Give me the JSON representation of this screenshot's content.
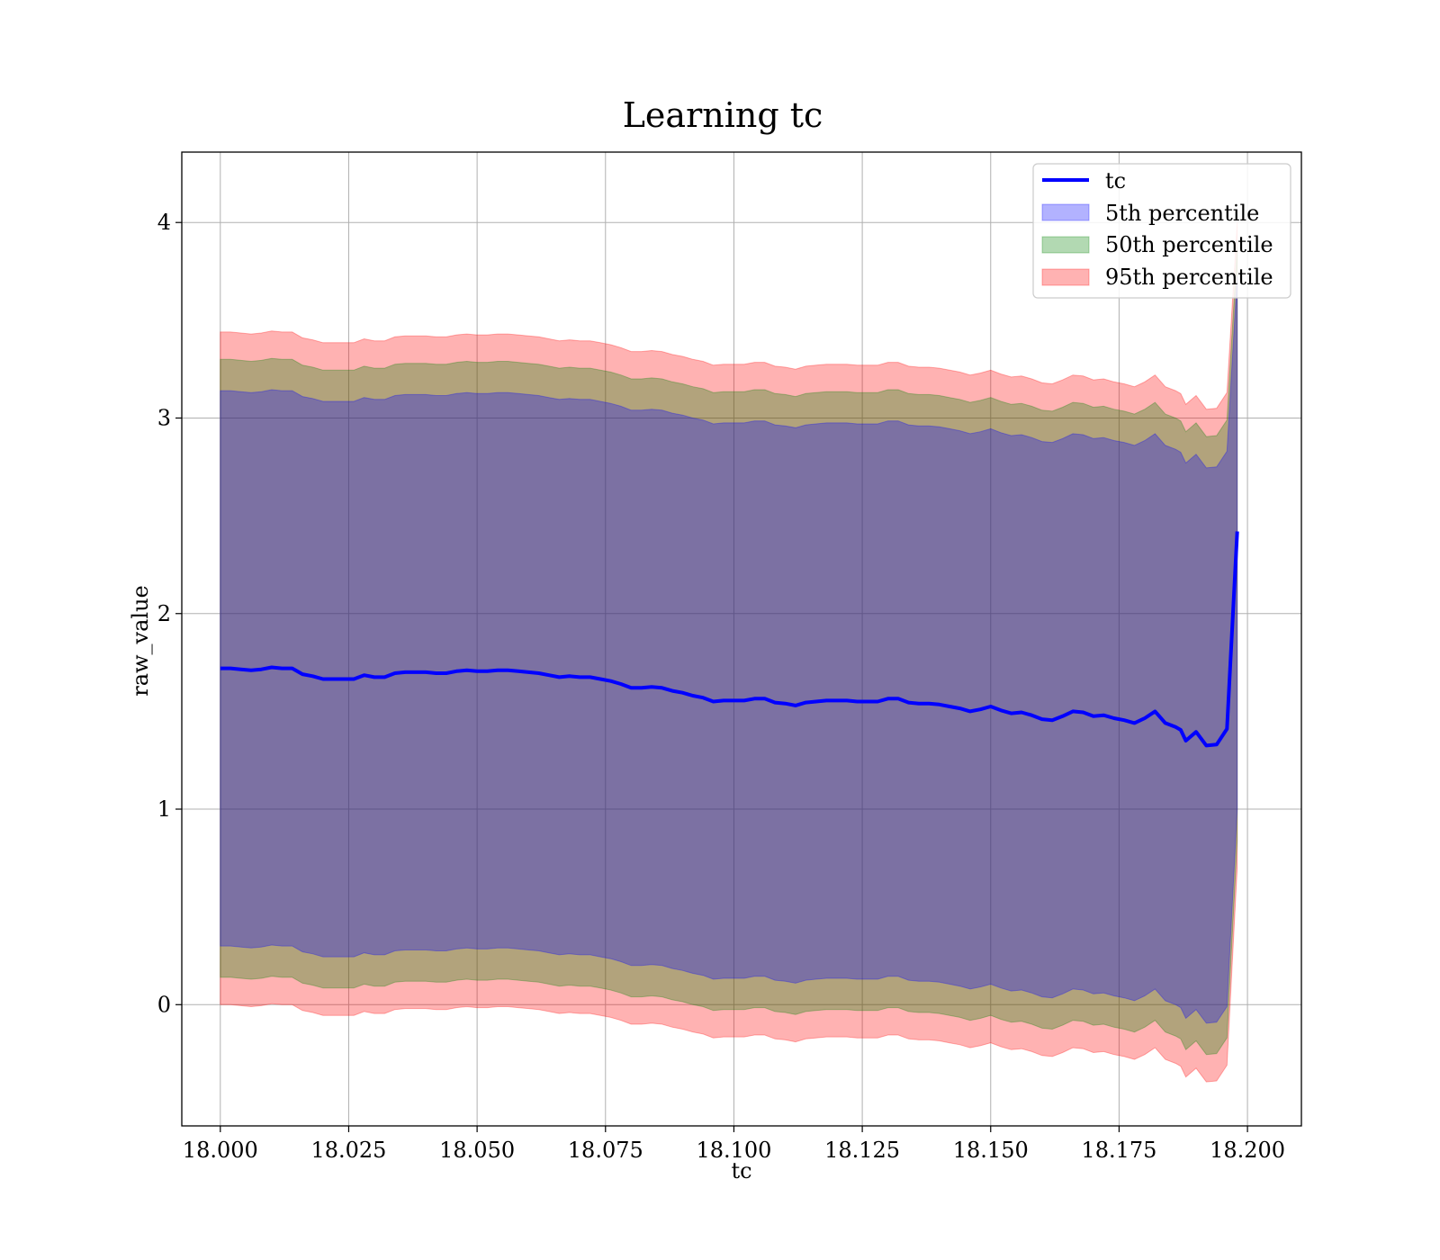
{
  "chart_data": {
    "type": "area",
    "title": "Learning tc",
    "xlabel": "tc",
    "ylabel": "raw_value",
    "xlim": [
      17.9925,
      18.2105
    ],
    "ylim": [
      -0.62,
      4.36
    ],
    "xticks": [
      18.0,
      18.025,
      18.05,
      18.075,
      18.1,
      18.125,
      18.15,
      18.175,
      18.2
    ],
    "xtick_labels": [
      "18.000",
      "18.025",
      "18.050",
      "18.075",
      "18.100",
      "18.125",
      "18.150",
      "18.175",
      "18.200"
    ],
    "yticks": [
      0,
      1,
      2,
      3,
      4
    ],
    "ytick_labels": [
      "0",
      "1",
      "2",
      "3",
      "4"
    ],
    "grid": true,
    "legend_position": "upper right",
    "legend": [
      "tc",
      "5th percentile",
      "50th percentile",
      "95th percentile"
    ],
    "colors": {
      "line": "#0000ff",
      "band5": "#0000ff",
      "band50": "#008000",
      "band95": "#ff0000"
    },
    "band_offsets": {
      "p5": 1.42,
      "p50": 1.58,
      "p95": 1.72
    },
    "x": [
      18.0,
      18.002,
      18.004,
      18.006,
      18.008,
      18.01,
      18.012,
      18.014,
      18.016,
      18.018,
      18.02,
      18.022,
      18.024,
      18.026,
      18.028,
      18.03,
      18.032,
      18.034,
      18.036,
      18.038,
      18.04,
      18.042,
      18.044,
      18.046,
      18.048,
      18.05,
      18.052,
      18.054,
      18.056,
      18.058,
      18.06,
      18.062,
      18.064,
      18.066,
      18.068,
      18.07,
      18.072,
      18.074,
      18.076,
      18.078,
      18.08,
      18.082,
      18.084,
      18.086,
      18.088,
      18.09,
      18.092,
      18.094,
      18.096,
      18.098,
      18.1,
      18.102,
      18.104,
      18.106,
      18.108,
      18.11,
      18.112,
      18.114,
      18.116,
      18.118,
      18.12,
      18.122,
      18.124,
      18.126,
      18.128,
      18.13,
      18.132,
      18.134,
      18.136,
      18.138,
      18.14,
      18.142,
      18.144,
      18.146,
      18.148,
      18.15,
      18.152,
      18.154,
      18.156,
      18.158,
      18.16,
      18.162,
      18.164,
      18.166,
      18.168,
      18.17,
      18.172,
      18.174,
      18.176,
      18.178,
      18.18,
      18.182,
      18.184,
      18.186,
      18.187,
      18.188,
      18.19,
      18.192,
      18.194,
      18.196,
      18.198
    ],
    "series": [
      {
        "name": "tc",
        "values": [
          1.72,
          1.72,
          1.715,
          1.71,
          1.715,
          1.725,
          1.72,
          1.72,
          1.69,
          1.68,
          1.665,
          1.665,
          1.665,
          1.665,
          1.685,
          1.675,
          1.675,
          1.695,
          1.7,
          1.7,
          1.7,
          1.695,
          1.695,
          1.705,
          1.71,
          1.705,
          1.705,
          1.71,
          1.71,
          1.705,
          1.7,
          1.695,
          1.685,
          1.675,
          1.68,
          1.675,
          1.675,
          1.665,
          1.655,
          1.64,
          1.62,
          1.62,
          1.625,
          1.62,
          1.605,
          1.595,
          1.58,
          1.57,
          1.55,
          1.555,
          1.555,
          1.555,
          1.565,
          1.565,
          1.545,
          1.54,
          1.53,
          1.545,
          1.55,
          1.555,
          1.555,
          1.555,
          1.55,
          1.55,
          1.55,
          1.565,
          1.565,
          1.545,
          1.54,
          1.54,
          1.535,
          1.525,
          1.515,
          1.5,
          1.51,
          1.525,
          1.505,
          1.49,
          1.495,
          1.48,
          1.46,
          1.455,
          1.475,
          1.5,
          1.495,
          1.475,
          1.48,
          1.465,
          1.455,
          1.44,
          1.465,
          1.5,
          1.44,
          1.42,
          1.405,
          1.35,
          1.395,
          1.325,
          1.33,
          1.41,
          2.42
        ]
      }
    ]
  }
}
